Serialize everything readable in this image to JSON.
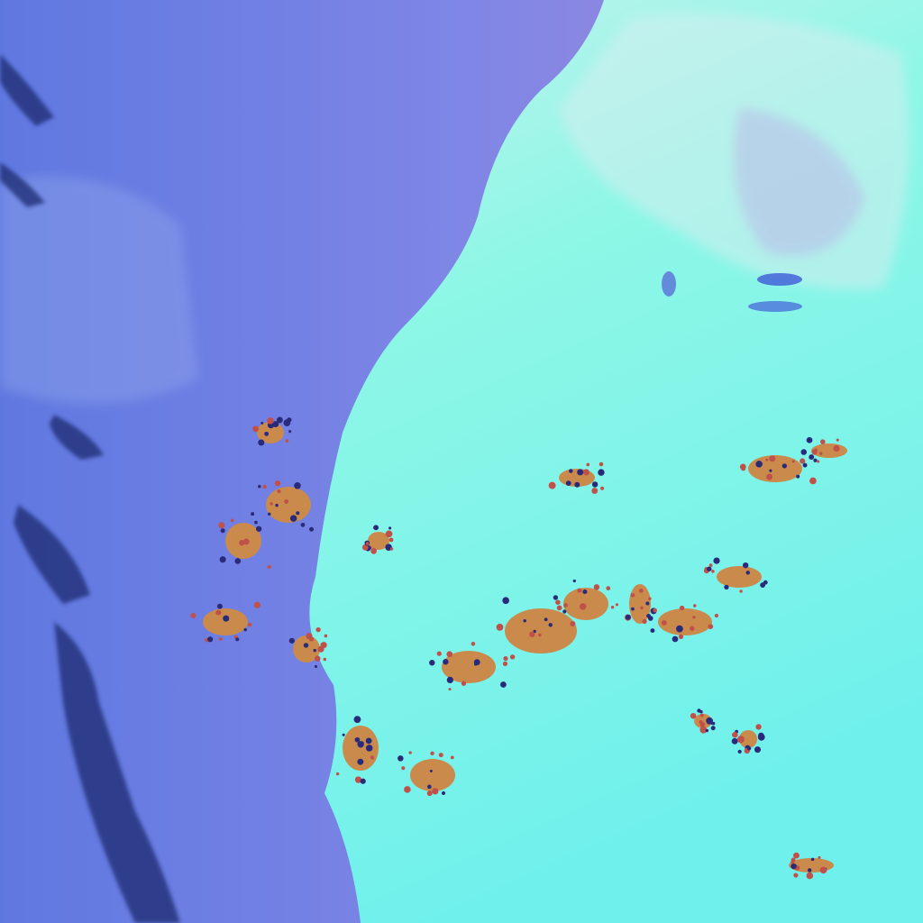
{
  "image": {
    "colors": {
      "ocean": "#7383e6",
      "ocean_pink": "#9a8ae0",
      "land": "#7ef5e6",
      "land_light": "#c6f7ee",
      "clouds_orange": "#c88a4a",
      "clouds_dark": "#1a2a6a"
    }
  }
}
